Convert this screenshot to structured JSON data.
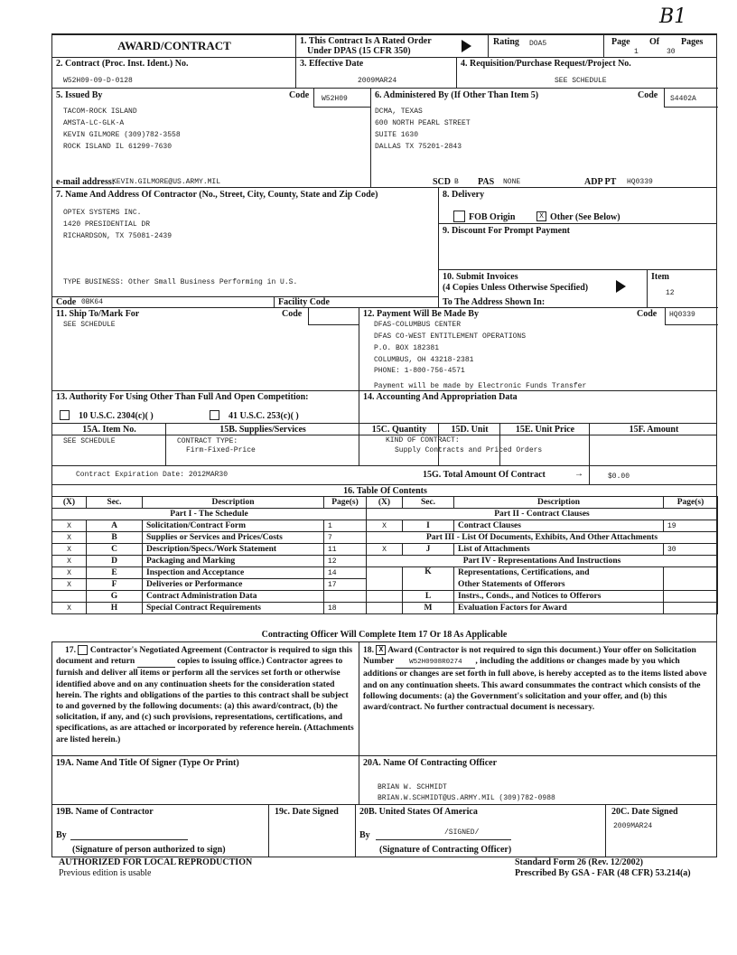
{
  "handwritten_mark": "B1",
  "header": {
    "title": "AWARD/CONTRACT",
    "item1_label": "1. This Contract Is A Rated Order",
    "item1_sub": "Under DPAS (15 CFR 350)",
    "rating_label": "Rating",
    "rating_value": "DOA5",
    "page_label": "Page",
    "of_label": "Of",
    "pages_label": "Pages",
    "page_value": "1",
    "pages_value": "30"
  },
  "row2": {
    "contract_no_label": "2. Contract (Proc. Inst. Ident.) No.",
    "contract_no": "W52H09-09-D-0128",
    "effective_date_label": "3. Effective Date",
    "effective_date": "2009MAR24",
    "requisition_label": "4. Requisition/Purchase Request/Project No.",
    "requisition": "SEE SCHEDULE"
  },
  "issued_by": {
    "label": "5. Issued By",
    "code_label": "Code",
    "code": "W52H09",
    "lines": [
      "TACOM-ROCK ISLAND",
      "AMSTA-LC-GLK-A",
      "KEVIN GILMORE (309)782-3558",
      "ROCK ISLAND IL  61299-7630"
    ],
    "email_label": "e-mail address:",
    "email": "KEVIN.GILMORE@US.ARMY.MIL"
  },
  "administered_by": {
    "label": "6. Administered By (If Other Than Item 5)",
    "code_label": "Code",
    "code": "S4402A",
    "lines": [
      "DCMA, TEXAS",
      "600 NORTH PEARL STREET",
      "SUITE 1630",
      "DALLAS  TX  75201-2843"
    ],
    "scd_label": "SCD",
    "scd": "B",
    "pas_label": "PAS",
    "pas": "NONE",
    "adp_label": "ADP PT",
    "adp": "HQ0339"
  },
  "contractor": {
    "label": "7. Name And Address Of Contractor (No., Street, City, County, State and Zip Code)",
    "lines": [
      "OPTEX SYSTEMS INC.",
      "1420 PRESIDENTIAL DR",
      "RICHARDSON, TX 75081-2439"
    ],
    "type_business": "TYPE BUSINESS: Other Small Business Performing in U.S.",
    "code_label": "Code",
    "code": "0BK64",
    "facility_code_label": "Facility Code"
  },
  "delivery": {
    "label": "8. Delivery",
    "fob_origin_label": "FOB Origin",
    "fob_origin_checked": "",
    "other_label": "Other (See Below)",
    "other_checked": "X"
  },
  "discount": {
    "label": "9. Discount For Prompt Payment"
  },
  "invoices": {
    "label": "10. Submit Invoices",
    "sub": "(4 Copies Unless Otherwise Specified)",
    "to_label": "To The Address Shown In:",
    "item_label": "Item",
    "item": "12"
  },
  "ship_to": {
    "label": "11. Ship To/Mark For",
    "code_label": "Code",
    "value": "SEE SCHEDULE"
  },
  "payment": {
    "label": "12. Payment Will Be Made By",
    "code_label": "Code",
    "code": "HQ0339",
    "lines": [
      "DFAS-COLUMBUS CENTER",
      "DFAS CO-WEST ENTITLEMENT OPERATIONS",
      "P.O. BOX 182381",
      "COLUMBUS, OH  43218-2381",
      "PHONE:  1-800-756-4571"
    ],
    "note": "Payment will be made by Electronic Funds Transfer"
  },
  "authority": {
    "label": "13. Authority For Using Other Than Full And Open Competition:",
    "opt1": "10 U.S.C. 2304(c)(        )",
    "opt2": "41 U.S.C. 253(c)(        )"
  },
  "accounting": {
    "label": "14. Accounting And Appropriation Data"
  },
  "items": {
    "headers": [
      "15A. Item No.",
      "15B. Supplies/Services",
      "15C. Quantity",
      "15D. Unit",
      "15E. Unit Price",
      "15F. Amount"
    ],
    "item_no": "SEE SCHEDULE",
    "contract_type_label": "CONTRACT TYPE:",
    "contract_type": "Firm-Fixed-Price",
    "kind_label": "KIND OF CONTRACT:",
    "kind": "Supply Contracts and Priced Orders",
    "expiration": "Contract Expiration Date: 2012MAR30",
    "total_label": "15G. Total Amount Of Contract",
    "total": "$0.00"
  },
  "toc": {
    "title": "16. Table Of Contents",
    "headers": [
      "(X)",
      "Sec.",
      "Description",
      "Page(s)"
    ],
    "part1": "Part I - The Schedule",
    "part2": "Part II - Contract Clauses",
    "part3": "Part III - List Of Documents, Exhibits, And Other Attachments",
    "part4": "Part IV - Representations And Instructions",
    "left_rows": [
      {
        "x": "X",
        "sec": "A",
        "desc": "Solicitation/Contract Form",
        "pages": "1"
      },
      {
        "x": "X",
        "sec": "B",
        "desc": "Supplies or Services and Prices/Costs",
        "pages": "7"
      },
      {
        "x": "X",
        "sec": "C",
        "desc": "Description/Specs./Work Statement",
        "pages": "11"
      },
      {
        "x": "X",
        "sec": "D",
        "desc": "Packaging and Marking",
        "pages": "12"
      },
      {
        "x": "X",
        "sec": "E",
        "desc": "Inspection and Acceptance",
        "pages": "14"
      },
      {
        "x": "X",
        "sec": "F",
        "desc": "Deliveries or Performance",
        "pages": "17"
      },
      {
        "x": "",
        "sec": "G",
        "desc": "Contract Administration Data",
        "pages": ""
      },
      {
        "x": "X",
        "sec": "H",
        "desc": "Special Contract Requirements",
        "pages": "18"
      }
    ],
    "right": {
      "i": {
        "x": "X",
        "sec": "I",
        "desc": "Contract Clauses",
        "pages": "19"
      },
      "j": {
        "x": "X",
        "sec": "J",
        "desc": "List of Attachments",
        "pages": "30"
      },
      "k": {
        "sec": "K",
        "desc1": "Representations, Certifications, and",
        "desc2": "Other Statements of Offerors"
      },
      "l": {
        "sec": "L",
        "desc": "Instrs., Conds., and Notices to Offerors"
      },
      "m": {
        "sec": "M",
        "desc": "Evaluation Factors for Award"
      }
    },
    "complete_note": "Contracting Officer Will Complete Item 17 Or 18 As Applicable"
  },
  "item17": {
    "prefix": "17.",
    "checked": "",
    "text_a": "Contractor's Negotiated Agreement   (Contractor is required to sign this document and return",
    "text_b": "copies to issuing office.)  Contractor agrees to furnish and deliver all items or perform all the services set forth or otherwise identified above and on any continuation sheets for the consideration stated herein.  The rights and obligations of the parties to this contract shall be subject to and governed by the following documents:  (a) this award/contract, (b) the solicitation, if any, and (c) such provisions, representations, certifications, and specifications, as are attached or incorporated by reference herein.  (Attachments are listed herein.)"
  },
  "item18": {
    "prefix": "18.",
    "checked": "X",
    "text_a": "Award (Contractor is not required to sign this document.)  Your offer on Solicitation Number",
    "solicitation": "W52H0908R0274",
    "text_b": ", including the additions or changes made by you which additions or changes are set forth in full above, is hereby accepted as to the items listed above and on any continuation sheets.  This award consummates the contract which consists of the following documents:  (a) the Government's solicitation and your offer, and (b) this award/contract.  No further contractual document is necessary."
  },
  "signer": {
    "label": "19A. Name And Title Of Signer (Type Or Print)"
  },
  "officer": {
    "label": "20A. Name Of Contracting Officer",
    "name": "BRIAN W. SCHMIDT",
    "contact": "BRIAN.W.SCHMIDT@US.ARMY.MIL (309)782-0988"
  },
  "sign19b": {
    "label": "19B. Name of Contractor",
    "by": "By",
    "caption": "(Signature of person authorized to sign)"
  },
  "sign19c": {
    "label": "19c. Date Signed"
  },
  "sign20b": {
    "label": "20B. United States Of America",
    "by": "By",
    "signature": "/SIGNED/",
    "caption": "(Signature of Contracting Officer)"
  },
  "sign20c": {
    "label": "20C. Date Signed",
    "date": "2009MAR24"
  },
  "footer": {
    "left1": "AUTHORIZED FOR LOCAL REPRODUCTION",
    "left2": "Previous edition is usable",
    "right1": "Standard Form 26 (Rev. 12/2002)",
    "right2": "Prescribed By GSA - FAR (48 CFR) 53.214(a)"
  }
}
